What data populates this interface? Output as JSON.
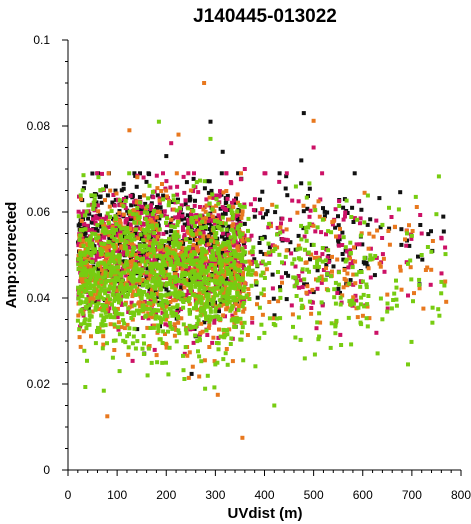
{
  "chart_data": {
    "type": "scatter",
    "title": "J140445-013022",
    "xlabel": "UVdist (m)",
    "ylabel": "Amp:corrected",
    "xlim": [
      0,
      800
    ],
    "ylim": [
      0,
      0.1
    ],
    "x_ticks": [
      "0",
      "100",
      "200",
      "300",
      "400",
      "500",
      "600",
      "700",
      "800"
    ],
    "y_ticks": [
      "0",
      "0.02",
      "0.04",
      "0.06",
      "0.08",
      "0.1"
    ],
    "grid": false,
    "legend": "none",
    "series": [
      {
        "color": "#111111",
        "count": 700,
        "y_center": 0.0525,
        "y_spread": 0.0075,
        "outliers": [
          [
            290,
            0.081
          ],
          [
            480,
            0.083
          ],
          [
            475,
            0.072
          ],
          [
            315,
            0.074
          ],
          [
            200,
            0.073
          ],
          [
            560,
            0.061
          ],
          [
            610,
            0.057
          ]
        ]
      },
      {
        "color": "#cc1166",
        "count": 800,
        "y_center": 0.0505,
        "y_spread": 0.008,
        "outliers": [
          [
            430,
            0.067
          ],
          [
            360,
            0.07
          ],
          [
            400,
            0.069
          ],
          [
            210,
            0.076
          ],
          [
            500,
            0.075
          ],
          [
            720,
            0.055
          ],
          [
            760,
            0.054
          ]
        ]
      },
      {
        "color": "#e8781e",
        "count": 800,
        "y_center": 0.047,
        "y_spread": 0.0085,
        "outliers": [
          [
            277,
            0.09
          ],
          [
            125,
            0.079
          ],
          [
            225,
            0.078
          ],
          [
            500,
            0.0812
          ],
          [
            80,
            0.0125
          ],
          [
            355,
            0.0075
          ],
          [
            305,
            0.0175
          ],
          [
            510,
            0.0625
          ]
        ]
      },
      {
        "color": "#77cc11",
        "count": 1400,
        "y_center": 0.045,
        "y_spread": 0.0085,
        "outliers": [
          [
            185,
            0.081
          ],
          [
            290,
            0.077
          ],
          [
            105,
            0.023
          ],
          [
            162,
            0.022
          ],
          [
            420,
            0.015
          ],
          [
            750,
            0.0595
          ],
          [
            720,
            0.05
          ],
          [
            640,
            0.057
          ]
        ]
      }
    ]
  }
}
